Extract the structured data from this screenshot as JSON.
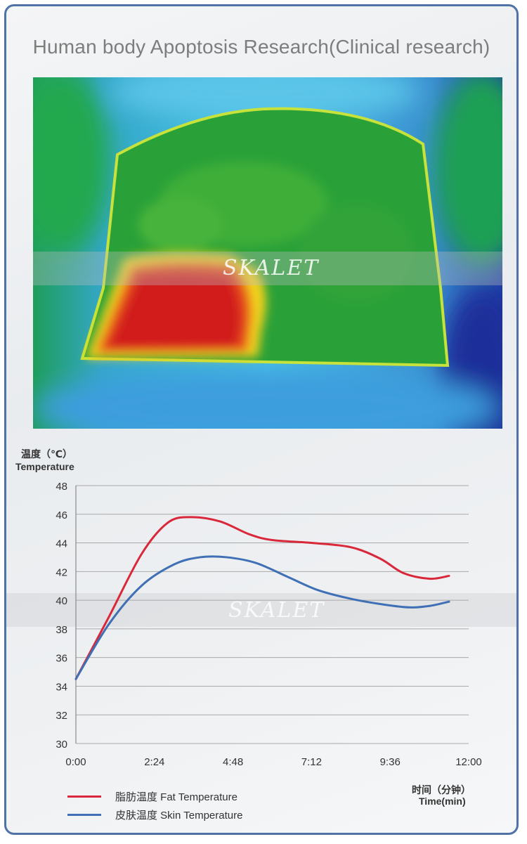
{
  "header": {
    "title": "Human body Apoptosis Research(Clinical research)"
  },
  "watermark": {
    "brand": "SKALET"
  },
  "chart_data": {
    "type": "line",
    "title": "",
    "ylabel_cn": "温度（℃）",
    "ylabel_en": "Temperature",
    "xlabel_cn": "时间（分钟）",
    "xlabel_en": "Time(min)",
    "ylim": [
      30,
      48
    ],
    "yticks": [
      "30",
      "32",
      "34",
      "36",
      "38",
      "40",
      "42",
      "44",
      "46",
      "48"
    ],
    "xticks": [
      "0:00",
      "2:24",
      "4:48",
      "7:12",
      "9:36",
      "12:00"
    ],
    "xlim_min": [
      0,
      12
    ],
    "grid": true,
    "legend_position": "bottom-left",
    "series": [
      {
        "name": "脂肪温度  Fat Temperature",
        "color": "#d9283a",
        "x": [
          0,
          1.0,
          2.0,
          2.8,
          3.5,
          4.4,
          5.3,
          6.0,
          7.2,
          8.4,
          9.3,
          10.0,
          10.8,
          11.4
        ],
        "y": [
          34.5,
          38.8,
          43.2,
          45.4,
          45.8,
          45.5,
          44.6,
          44.2,
          44.0,
          43.7,
          42.9,
          41.9,
          41.5,
          41.7
        ]
      },
      {
        "name": "皮肤温度 Skin Temperature",
        "color": "#3f6fb5",
        "x": [
          0,
          1.0,
          2.0,
          3.0,
          3.8,
          4.6,
          5.5,
          6.5,
          7.4,
          8.4,
          9.4,
          10.2,
          10.8,
          11.4
        ],
        "y": [
          34.5,
          38.3,
          41.0,
          42.5,
          43.0,
          43.0,
          42.6,
          41.6,
          40.7,
          40.1,
          39.7,
          39.5,
          39.6,
          39.9
        ]
      }
    ]
  }
}
